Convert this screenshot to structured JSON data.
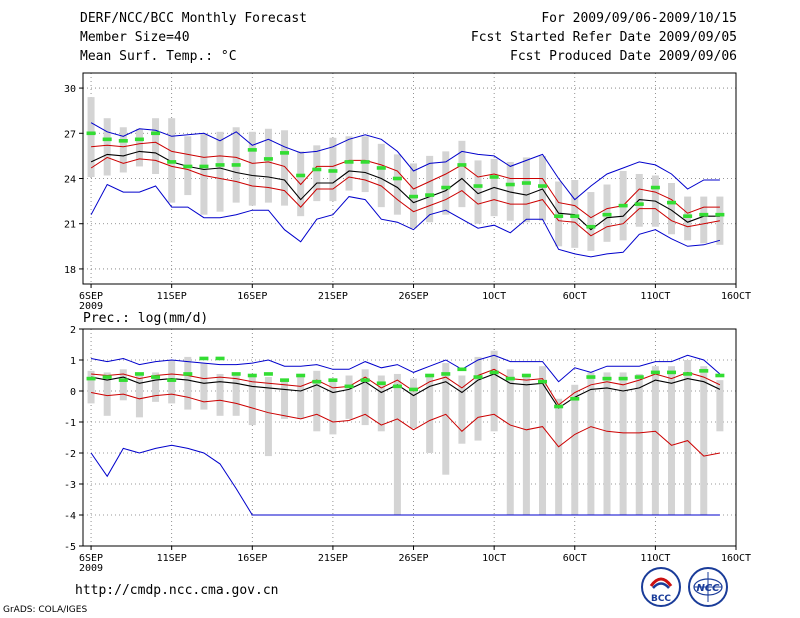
{
  "header": {
    "title": "DERF/NCC/BCC Monthly Forecast",
    "member_size": "Member Size=40",
    "variable": "Mean Surf. Temp.: °C",
    "period": "For 2009/09/06-2009/10/15",
    "started": "Fcst Started Refer Date 2009/09/05",
    "produced": "Fcst Produced Date 2009/09/06"
  },
  "footer": {
    "url": "http://cmdp.ncc.cma.gov.cn",
    "grads": "GrADS: COLA/IGES",
    "logo_left_text": "BCC",
    "logo_right_text": "NCC"
  },
  "colors": {
    "mean": "#000000",
    "spread": "#cc0000",
    "extreme": "#0000cc",
    "member_bar": "#d4d4d4",
    "observed": "#33dd33"
  },
  "chart_data": [
    {
      "type": "line",
      "title": "Mean Surf. Temp.: °C",
      "x": [
        1,
        2,
        3,
        4,
        5,
        6,
        7,
        8,
        9,
        10,
        11,
        12,
        13,
        14,
        15,
        16,
        17,
        18,
        19,
        20,
        21,
        22,
        23,
        24,
        25,
        26,
        27,
        28,
        29,
        30,
        31,
        32,
        33,
        34,
        35,
        36,
        37,
        38,
        39,
        40
      ],
      "x_tick_positions": [
        1,
        6,
        11,
        16,
        21,
        26,
        31,
        36,
        41
      ],
      "x_tick_labels": [
        "6SEP",
        "11SEP",
        "16SEP",
        "21SEP",
        "26SEP",
        "1OCT",
        "6OCT",
        "11OCT",
        "16OCT"
      ],
      "x_sub_label": "2009",
      "xlim": [
        0.5,
        41
      ],
      "ylim": [
        17,
        31
      ],
      "y_ticks": [
        18,
        21,
        24,
        27,
        30
      ],
      "grid": true,
      "series": [
        {
          "name": "max",
          "color_key": "extreme",
          "values": [
            21.6,
            23.6,
            23.1,
            23.1,
            23.5,
            22.1,
            22.1,
            21.4,
            21.4,
            21.6,
            21.9,
            21.9,
            20.6,
            19.8,
            21.3,
            21.6,
            22.8,
            22.6,
            21.3,
            21.1,
            20.6,
            21.6,
            21.9,
            21.3,
            20.7,
            20.9,
            20.4,
            21.3,
            21.3,
            19.3,
            19.0,
            18.8,
            19.0,
            19.1,
            20.3,
            20.6,
            20.0,
            19.5,
            19.6,
            19.9
          ]
        },
        {
          "name": "max_upper",
          "color_key": "extreme",
          "values": [
            27.7,
            27.1,
            26.8,
            27.3,
            27.2,
            26.8,
            26.9,
            27.0,
            26.5,
            27.1,
            26.2,
            26.6,
            26.1,
            25.7,
            25.8,
            26.1,
            26.6,
            26.9,
            26.6,
            25.8,
            24.5,
            25.0,
            25.1,
            25.8,
            25.6,
            25.5,
            24.8,
            25.2,
            25.6,
            24.0,
            22.6,
            23.5,
            24.3,
            24.7,
            25.1,
            24.9,
            24.3,
            23.3,
            23.9,
            23.9
          ]
        },
        {
          "name": "upper",
          "color_key": "spread",
          "values": [
            26.1,
            26.2,
            26.1,
            26.3,
            26.4,
            25.8,
            25.6,
            25.4,
            25.5,
            25.4,
            25.0,
            25.1,
            24.8,
            23.6,
            24.8,
            24.8,
            25.2,
            25.2,
            24.9,
            24.5,
            23.3,
            23.8,
            24.3,
            24.9,
            24.1,
            24.3,
            24.0,
            24.0,
            24.0,
            22.4,
            22.2,
            21.4,
            22.0,
            22.2,
            23.3,
            23.1,
            22.6,
            21.7,
            22.1,
            22.1
          ]
        },
        {
          "name": "mean",
          "color_key": "mean",
          "values": [
            25.1,
            25.6,
            25.5,
            25.8,
            25.7,
            25.1,
            24.8,
            24.6,
            24.7,
            24.4,
            24.2,
            24.1,
            23.9,
            22.6,
            23.7,
            23.7,
            24.5,
            24.4,
            24.0,
            23.4,
            22.4,
            22.8,
            23.2,
            24.0,
            23.0,
            23.4,
            23.1,
            22.9,
            23.3,
            21.7,
            21.6,
            20.6,
            21.4,
            21.5,
            22.6,
            22.5,
            21.9,
            21.1,
            21.5,
            21.5
          ]
        },
        {
          "name": "lower",
          "color_key": "spread",
          "values": [
            24.7,
            25.4,
            25.0,
            25.3,
            25.2,
            24.8,
            24.6,
            24.2,
            24.0,
            23.8,
            23.5,
            23.4,
            23.2,
            22.1,
            23.3,
            23.3,
            24.1,
            23.9,
            23.5,
            22.6,
            21.8,
            22.2,
            22.6,
            23.2,
            22.3,
            22.6,
            22.3,
            22.3,
            22.6,
            21.2,
            21.1,
            20.2,
            20.8,
            21.0,
            22.0,
            22.0,
            21.2,
            20.8,
            21.0,
            21.2
          ]
        }
      ],
      "member_bars": {
        "low": [
          24.1,
          24.2,
          24.4,
          24.8,
          24.3,
          22.4,
          22.9,
          21.6,
          21.8,
          22.4,
          22.2,
          22.4,
          22.2,
          21.5,
          22.5,
          22.5,
          23.2,
          23.1,
          22.1,
          21.6,
          20.7,
          21.1,
          21.6,
          22.1,
          21.0,
          21.5,
          21.2,
          21.1,
          21.2,
          19.5,
          19.4,
          19.2,
          19.8,
          19.9,
          20.8,
          20.8,
          20.3,
          19.9,
          19.7,
          19.6
        ],
        "high": [
          29.4,
          28.0,
          27.4,
          27.3,
          28.0,
          28.0,
          26.8,
          27.0,
          27.1,
          27.4,
          27.1,
          27.3,
          27.2,
          25.8,
          26.2,
          26.7,
          26.8,
          26.8,
          26.3,
          25.6,
          25.0,
          25.5,
          25.8,
          26.5,
          25.2,
          25.3,
          25.1,
          25.4,
          25.5,
          23.8,
          23.9,
          23.1,
          23.6,
          24.5,
          24.3,
          24.2,
          23.7,
          22.8,
          22.8,
          22.8
        ]
      },
      "observed": [
        27.0,
        26.6,
        26.5,
        26.6,
        27.0,
        25.1,
        24.8,
        24.8,
        24.9,
        24.9,
        25.9,
        25.3,
        25.7,
        24.2,
        24.6,
        24.5,
        25.1,
        25.1,
        24.7,
        24.0,
        22.8,
        22.9,
        23.4,
        24.9,
        23.5,
        24.1,
        23.6,
        23.7,
        23.5,
        21.5,
        21.5,
        20.8,
        21.6,
        22.2,
        22.3,
        23.4,
        22.4,
        21.5,
        21.6,
        21.6
      ]
    },
    {
      "type": "line",
      "title": "Prec.: log(mm/d)",
      "x": [
        1,
        2,
        3,
        4,
        5,
        6,
        7,
        8,
        9,
        10,
        11,
        12,
        13,
        14,
        15,
        16,
        17,
        18,
        19,
        20,
        21,
        22,
        23,
        24,
        25,
        26,
        27,
        28,
        29,
        30,
        31,
        32,
        33,
        34,
        35,
        36,
        37,
        38,
        39,
        40
      ],
      "x_tick_positions": [
        1,
        6,
        11,
        16,
        21,
        26,
        31,
        36,
        41
      ],
      "x_tick_labels": [
        "6SEP",
        "11SEP",
        "16SEP",
        "21SEP",
        "26SEP",
        "1OCT",
        "6OCT",
        "11OCT",
        "16OCT"
      ],
      "x_sub_label": "2009",
      "xlim": [
        0.5,
        41
      ],
      "ylim": [
        -5,
        2
      ],
      "y_ticks": [
        -5,
        -4,
        -3,
        -2,
        -1,
        0,
        1,
        2
      ],
      "grid": true,
      "series": [
        {
          "name": "max",
          "color_key": "extreme",
          "values": [
            1.05,
            0.95,
            1.05,
            0.85,
            0.95,
            1.0,
            0.95,
            0.9,
            0.85,
            0.85,
            0.9,
            1.0,
            0.8,
            0.8,
            0.85,
            0.7,
            0.7,
            0.95,
            0.75,
            0.85,
            0.6,
            0.8,
            1.0,
            0.7,
            1.0,
            1.15,
            0.95,
            0.95,
            0.95,
            0.3,
            0.75,
            0.6,
            0.8,
            0.8,
            0.8,
            0.95,
            0.95,
            1.15,
            1.0,
            0.55
          ]
        },
        {
          "name": "min",
          "color_key": "extreme",
          "values": [
            -2.0,
            -2.75,
            -1.85,
            -2.0,
            -1.85,
            -1.75,
            -1.85,
            -2.0,
            -2.35,
            -3.15,
            -4.0,
            -4.0,
            -4.0,
            -4.0,
            -4.0,
            -4.0,
            -4.0,
            -4.0,
            -4.0,
            -4.0,
            -4.0,
            -4.0,
            -4.0,
            -4.0,
            -4.0,
            -4.0,
            -4.0,
            -4.0,
            -4.0,
            -4.0,
            -4.0,
            -4.0,
            -4.0,
            -4.0,
            -4.0,
            -4.0,
            -4.0,
            -4.0,
            -4.0,
            -4.0
          ]
        },
        {
          "name": "upper",
          "color_key": "spread",
          "values": [
            0.55,
            0.5,
            0.55,
            0.4,
            0.5,
            0.55,
            0.5,
            0.4,
            0.45,
            0.4,
            0.3,
            0.25,
            0.2,
            0.15,
            0.35,
            0.1,
            0.15,
            0.45,
            0.1,
            0.35,
            0.0,
            0.3,
            0.45,
            0.1,
            0.5,
            0.7,
            0.4,
            0.35,
            0.4,
            -0.45,
            -0.05,
            0.2,
            0.3,
            0.2,
            0.35,
            0.55,
            0.4,
            0.6,
            0.45,
            0.2
          ]
        },
        {
          "name": "mean",
          "color_key": "mean",
          "values": [
            0.45,
            0.35,
            0.45,
            0.25,
            0.35,
            0.4,
            0.35,
            0.25,
            0.3,
            0.25,
            0.15,
            0.1,
            0.05,
            0.0,
            0.2,
            -0.05,
            0.05,
            0.3,
            -0.05,
            0.2,
            -0.15,
            0.15,
            0.3,
            -0.05,
            0.35,
            0.55,
            0.25,
            0.2,
            0.25,
            -0.55,
            -0.2,
            0.05,
            0.1,
            0.0,
            0.1,
            0.35,
            0.25,
            0.4,
            0.3,
            0.05
          ]
        },
        {
          "name": "lower",
          "color_key": "spread",
          "values": [
            -0.05,
            -0.15,
            -0.1,
            -0.25,
            -0.15,
            -0.1,
            -0.2,
            -0.35,
            -0.3,
            -0.4,
            -0.55,
            -0.7,
            -0.8,
            -0.9,
            -0.75,
            -1.0,
            -0.95,
            -0.75,
            -1.1,
            -0.9,
            -1.25,
            -0.95,
            -0.75,
            -1.3,
            -0.85,
            -0.75,
            -1.1,
            -1.25,
            -1.15,
            -1.8,
            -1.4,
            -1.15,
            -1.3,
            -1.35,
            -1.35,
            -1.3,
            -1.75,
            -1.6,
            -2.1,
            -2.0
          ]
        }
      ],
      "member_bars": {
        "low": [
          -0.4,
          -0.8,
          -0.3,
          -0.85,
          -0.35,
          -0.4,
          -0.6,
          -0.6,
          -0.8,
          -0.8,
          -1.1,
          -2.1,
          -0.9,
          -0.9,
          -1.3,
          -1.4,
          -0.9,
          -1.1,
          -1.3,
          -4.0,
          -1.2,
          -2.0,
          -2.7,
          -1.7,
          -1.6,
          -1.3,
          -4.0,
          -4.0,
          -4.0,
          -4.0,
          -4.0,
          -4.0,
          -4.0,
          -4.0,
          -4.0,
          -4.0,
          -4.0,
          -4.0,
          -4.0,
          -1.3
        ],
        "high": [
          0.65,
          0.6,
          0.7,
          0.55,
          0.6,
          1.0,
          1.1,
          0.9,
          0.55,
          0.5,
          0.5,
          0.45,
          0.4,
          0.5,
          0.65,
          0.35,
          0.5,
          0.7,
          0.5,
          0.55,
          0.4,
          0.55,
          0.9,
          0.5,
          1.1,
          1.3,
          0.7,
          0.55,
          0.8,
          -0.25,
          0.2,
          0.6,
          0.6,
          0.6,
          0.55,
          0.8,
          0.8,
          1.0,
          0.8,
          0.35
        ]
      },
      "observed": [
        0.4,
        0.45,
        0.35,
        0.55,
        0.45,
        0.35,
        0.55,
        1.05,
        1.05,
        0.55,
        0.5,
        0.55,
        0.35,
        0.5,
        0.3,
        0.35,
        0.15,
        0.35,
        0.25,
        0.15,
        0.05,
        0.5,
        0.55,
        0.7,
        0.45,
        0.6,
        0.4,
        0.5,
        0.3,
        -0.5,
        -0.25,
        0.45,
        0.4,
        0.4,
        0.45,
        0.6,
        0.6,
        0.55,
        0.65,
        0.5
      ]
    }
  ]
}
